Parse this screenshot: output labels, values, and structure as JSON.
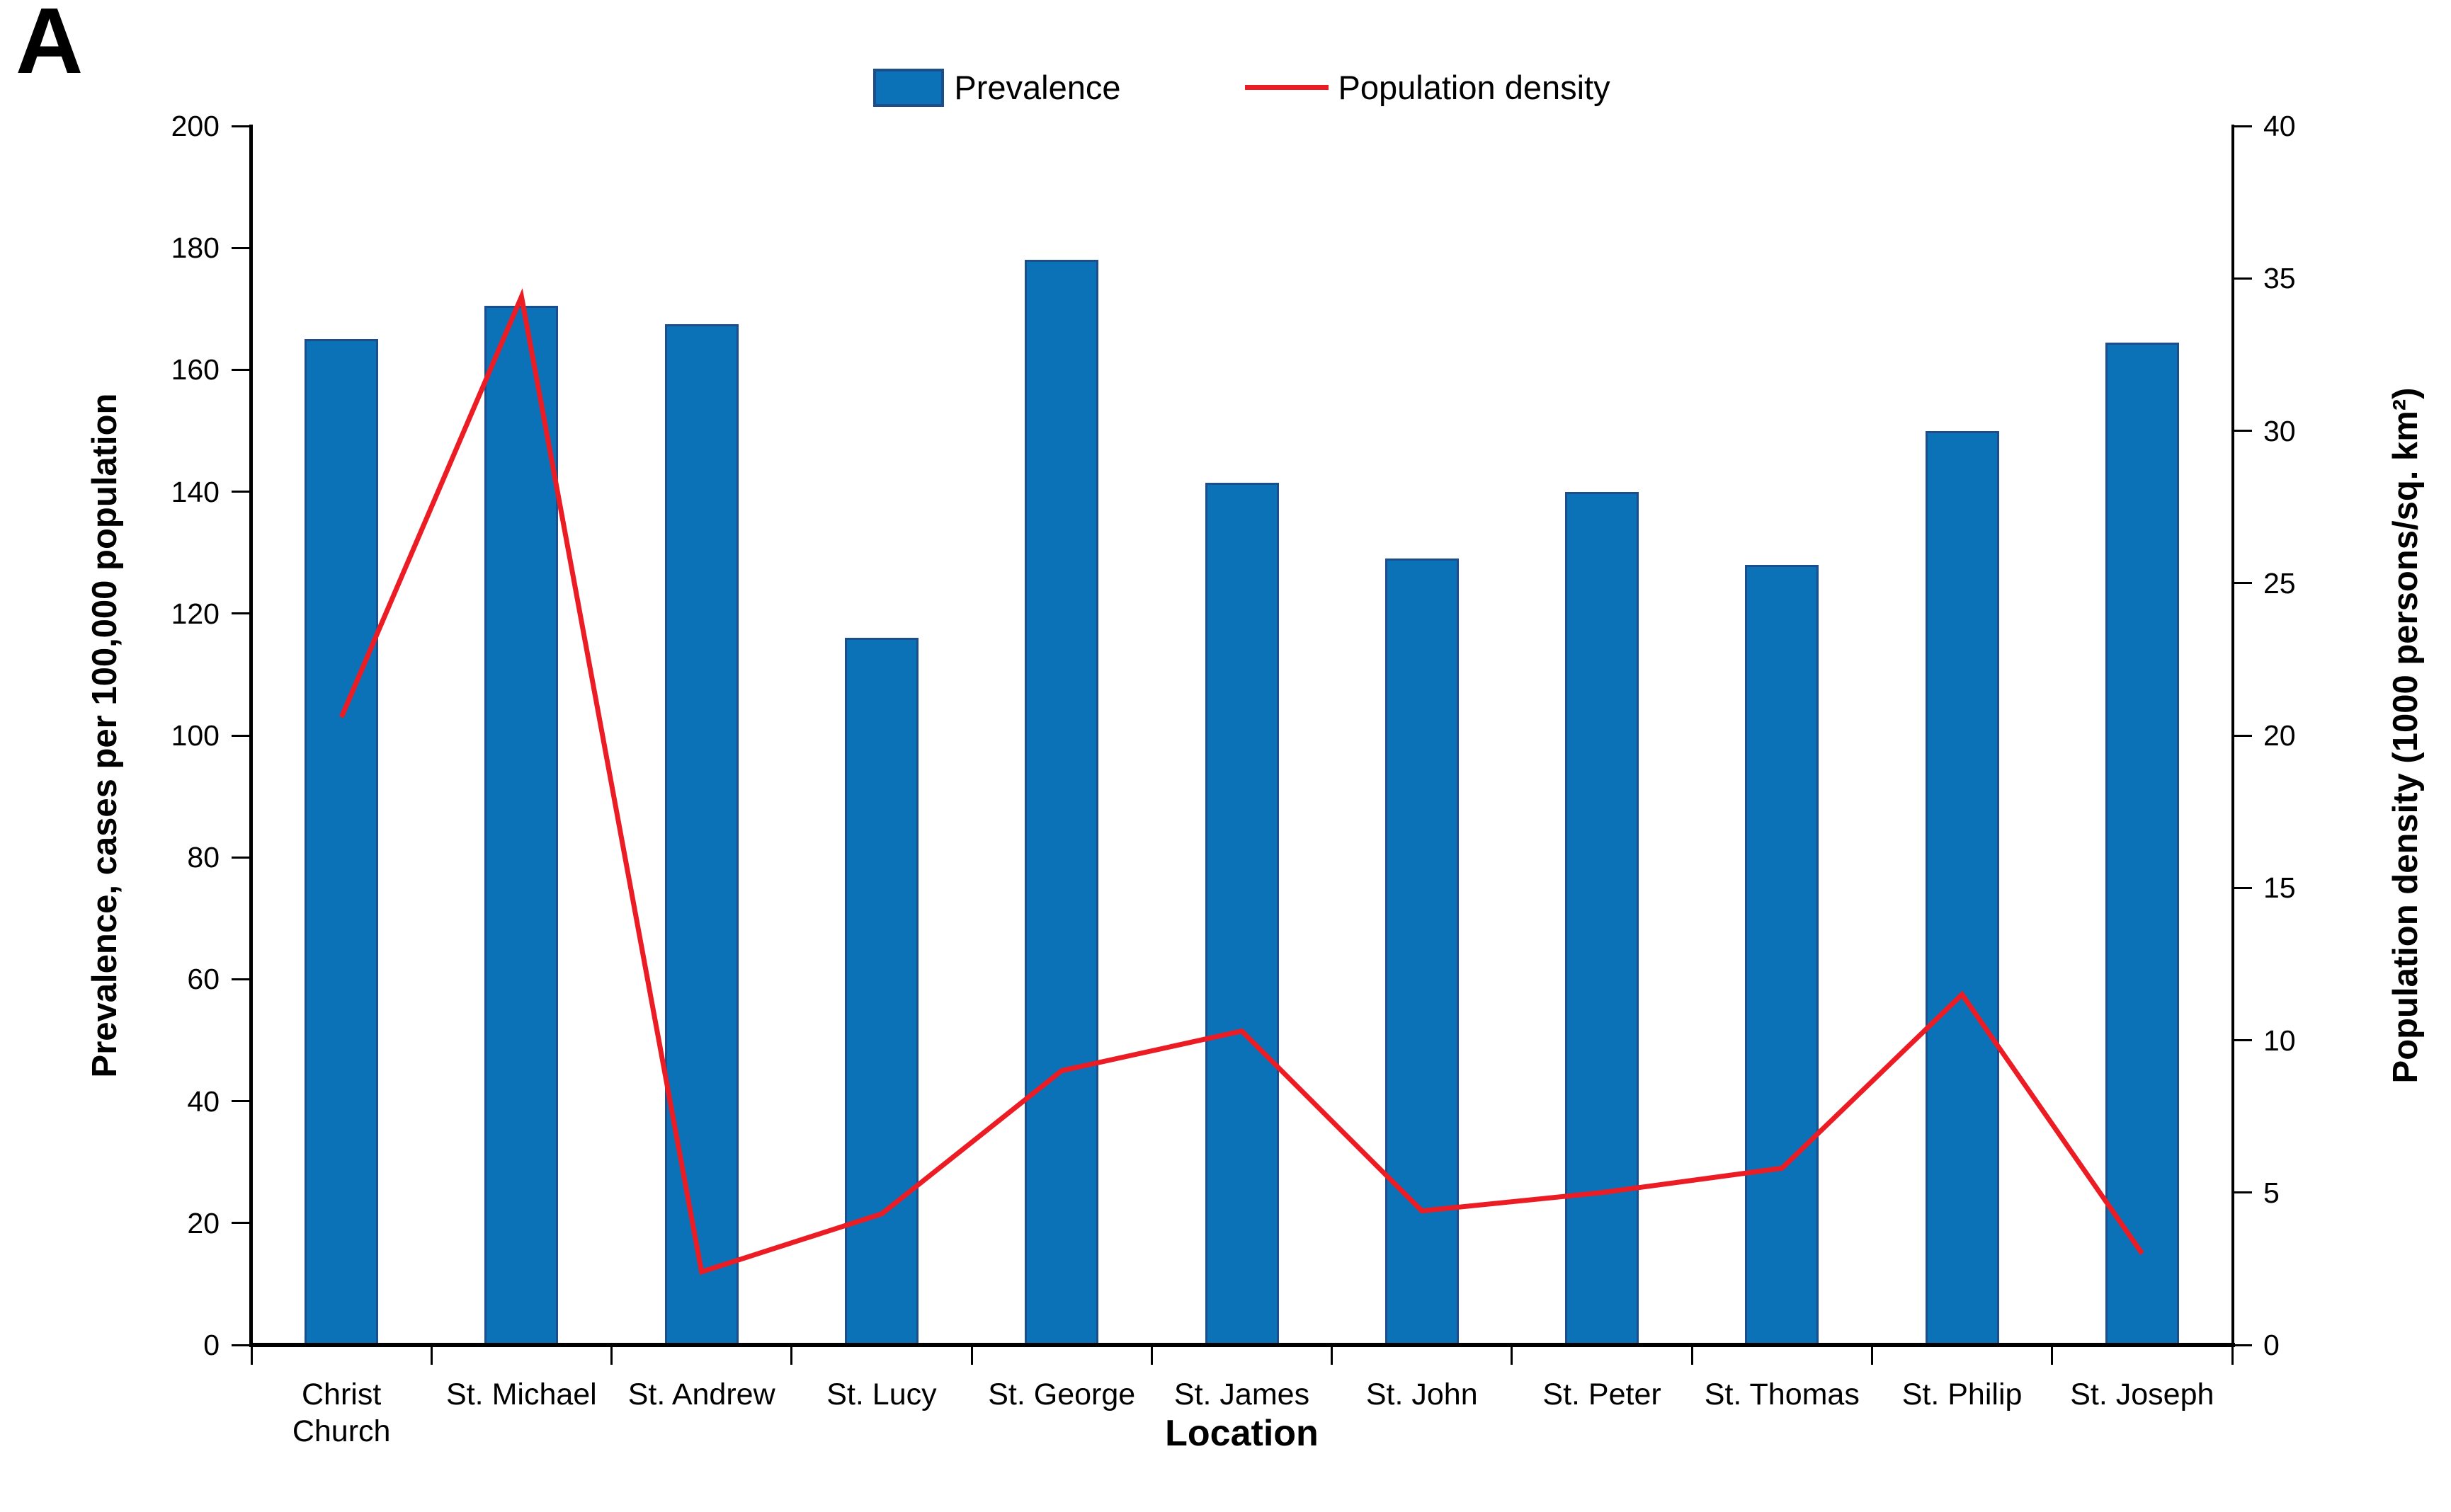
{
  "figure": {
    "panel_label": "A"
  },
  "legend": {
    "items": [
      {
        "label": "Prevalence",
        "type": "bar-swatch",
        "color": "#0c72b8"
      },
      {
        "label": "Population density",
        "type": "line-swatch",
        "color": "#ec1c24"
      }
    ]
  },
  "chart_data": {
    "type": "bar+line",
    "categories": [
      "Christ Church",
      "St. Michael",
      "St. Andrew",
      "St. Lucy",
      "St. George",
      "St. James",
      "St. John",
      "St. Peter",
      "St. Thomas",
      "St. Philip",
      "St. Joseph"
    ],
    "series": [
      {
        "name": "Prevalence",
        "type": "bar",
        "axis": "left",
        "color": "#0c72b8",
        "values": [
          165,
          170.5,
          167.5,
          116,
          178,
          141.5,
          129,
          140,
          128,
          150,
          164.5
        ]
      },
      {
        "name": "Population density",
        "type": "line",
        "axis": "right",
        "color": "#ec1c24",
        "values": [
          20.6,
          34.4,
          2.4,
          4.3,
          9.0,
          10.3,
          4.4,
          5.0,
          5.8,
          11.5,
          3.0
        ]
      }
    ],
    "left_axis": {
      "label": "Prevalence, cases per 100,000 population",
      "min": 0,
      "max": 200,
      "step": 20,
      "ticks": [
        "0",
        "20",
        "40",
        "60",
        "80",
        "100",
        "120",
        "140",
        "160",
        "180",
        "200"
      ]
    },
    "right_axis": {
      "label": "Population density (1000 persons/sq. km²)",
      "min": 0,
      "max": 40,
      "step": 5,
      "ticks": [
        "0",
        "5",
        "10",
        "15",
        "20",
        "25",
        "30",
        "35",
        "40"
      ]
    },
    "x_axis": {
      "label": "Location"
    },
    "grid": false,
    "legend_position": "top"
  }
}
